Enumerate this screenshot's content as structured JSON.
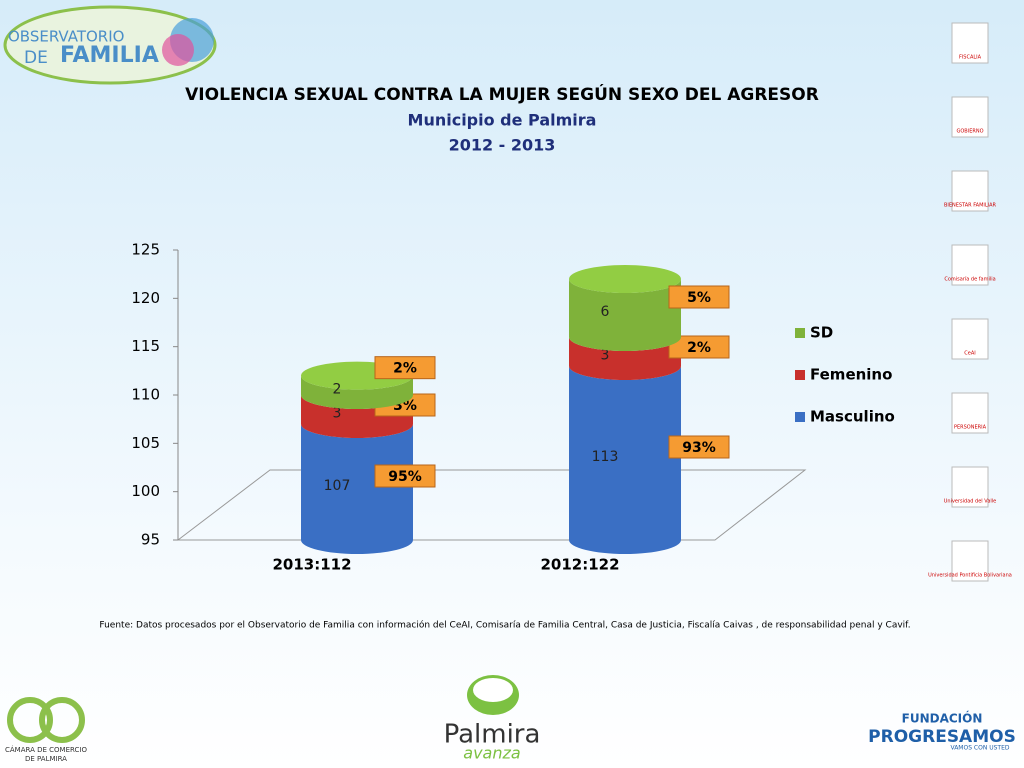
{
  "chart_data": {
    "type": "bar3d",
    "title": "VIOLENCIA SEXUAL CONTRA LA MUJER SEGÚN SEXO DEL AGRESOR",
    "subtitle": "Municipio de Palmira",
    "period": "2012 - 2013",
    "categories": [
      "2013:112",
      "2012:122"
    ],
    "series": [
      {
        "name": "Masculino",
        "color": "#3a6fc4",
        "values": [
          107,
          113
        ],
        "share_labels": [
          "95%",
          "93%"
        ]
      },
      {
        "name": "Femenino",
        "color": "#c8302c",
        "values": [
          3,
          3
        ],
        "share_labels": [
          "3%",
          "2%"
        ]
      },
      {
        "name": "SD",
        "color": "#7fb23a",
        "values": [
          2,
          6
        ],
        "share_labels": [
          "2%",
          "5%"
        ]
      }
    ],
    "stacked": true,
    "ylim": [
      95,
      125
    ],
    "yticks": [
      95,
      100,
      105,
      110,
      115,
      120,
      125
    ],
    "legend": "right",
    "source": "Fuente: Datos procesados por el Observatorio de  Familia con información del CeAI, Comisaría de Familia Central, Casa de Justicia, Fiscalía Caivas , de responsabilidad penal y Cavif."
  },
  "logos": {
    "observatorio": [
      "OBSERVATORIO",
      "DE",
      "FAMILIA"
    ],
    "camara": [
      "CÁMARA DE COMERCIO",
      "DE PALMIRA"
    ],
    "palmira": [
      "Palmira",
      "avanza"
    ],
    "progresamos": [
      "FUNDACIÓN",
      "PROGRESAMOS",
      "VAMOS CON USTED"
    ],
    "side": [
      "FISCALIA",
      "GOBIERNO",
      "BIENESTAR FAMILIAR",
      "Comisaría de familia",
      "CeAI",
      "PERSONERIA",
      "Universidad del Valle",
      "Universidad Pontificia Bolivariana"
    ]
  }
}
